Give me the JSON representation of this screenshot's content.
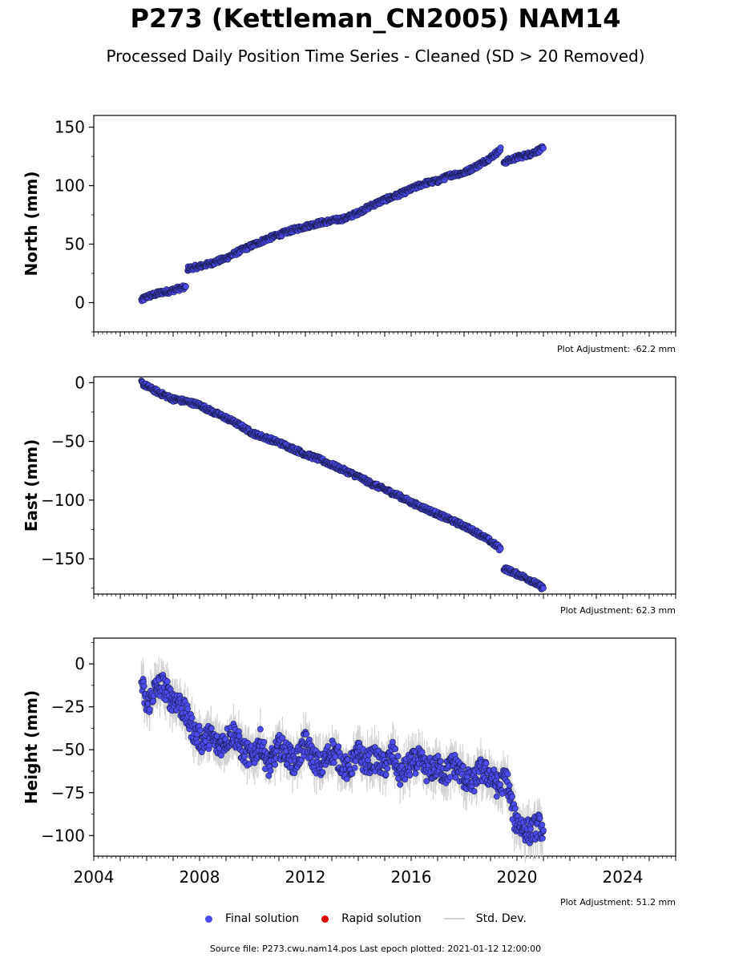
{
  "title": "P273 (Kettleman_CN2005) NAM14",
  "subtitle": "Processed Daily Position Time Series - Cleaned (SD > 20 Removed)",
  "colors": {
    "final": "#4b4bf0",
    "final_edge": "#1a1a4a",
    "rapid": "#e00000",
    "stddev": "#d2d2d2"
  },
  "legend": {
    "final": "Final solution",
    "rapid": "Rapid solution",
    "stddev": "Std. Dev."
  },
  "footer": "Source file: P273.cwu.nam14.pos  Last epoch plotted: 2021-01-12 12:00:00",
  "chart_data": [
    {
      "type": "scatter",
      "ylabel": "North (mm)",
      "xlim": [
        2004,
        2026
      ],
      "ylim": [
        -25,
        160
      ],
      "yticks": [
        0,
        50,
        100,
        150
      ],
      "adjustment": "Plot Adjustment: -62.2 mm",
      "series": [
        {
          "x": [
            2005.8,
            2006.0,
            2006.3,
            2006.6,
            2006.9,
            2007.2,
            2007.5,
            2007.55,
            2008.0,
            2008.5,
            2009.0,
            2009.5,
            2010.0,
            2010.5,
            2011.0,
            2011.5,
            2012.0,
            2012.5,
            2013.0,
            2013.5,
            2014.0,
            2014.5,
            2015.0,
            2015.5,
            2016.0,
            2016.5,
            2017.0,
            2017.5,
            2018.0,
            2018.5,
            2019.0,
            2019.4,
            2019.5,
            2020.0,
            2020.5,
            2021.0
          ],
          "y": [
            2,
            5,
            7,
            9,
            10,
            12,
            13,
            29,
            31,
            34,
            38,
            44,
            49,
            54,
            58,
            62,
            65,
            68,
            70,
            72,
            77,
            83,
            88,
            92,
            97,
            102,
            104,
            109,
            111,
            117,
            124,
            131,
            120,
            124,
            127,
            132
          ]
        }
      ]
    },
    {
      "type": "scatter",
      "ylabel": "East (mm)",
      "xlim": [
        2004,
        2026
      ],
      "ylim": [
        -180,
        5
      ],
      "yticks": [
        0,
        -50,
        -100,
        -150
      ],
      "adjustment": "Plot Adjustment: 62.3 mm",
      "series": [
        {
          "x": [
            2005.8,
            2006.0,
            2006.5,
            2007.0,
            2007.5,
            2008.0,
            2008.5,
            2009.0,
            2009.5,
            2010.0,
            2010.5,
            2011.0,
            2011.5,
            2012.0,
            2012.5,
            2013.0,
            2013.5,
            2014.0,
            2014.5,
            2015.0,
            2015.5,
            2016.0,
            2016.5,
            2017.0,
            2017.5,
            2018.0,
            2018.5,
            2019.0,
            2019.4,
            2019.5,
            2020.0,
            2020.5,
            2021.0
          ],
          "y": [
            0,
            -3,
            -9,
            -14,
            -16,
            -19,
            -25,
            -30,
            -36,
            -43,
            -47,
            -51,
            -56,
            -61,
            -65,
            -70,
            -75,
            -80,
            -86,
            -91,
            -96,
            -102,
            -107,
            -112,
            -117,
            -122,
            -128,
            -135,
            -142,
            -158,
            -163,
            -168,
            -175
          ]
        }
      ]
    },
    {
      "type": "scatter",
      "ylabel": "Height (mm)",
      "xlim": [
        2004,
        2026
      ],
      "ylim": [
        -112,
        15
      ],
      "yticks": [
        0,
        -25,
        -50,
        -75,
        -100
      ],
      "xticks": [
        2004,
        2008,
        2012,
        2016,
        2020,
        2024
      ],
      "adjustment": "Plot Adjustment: 51.2 mm",
      "series": [
        {
          "x": [
            2005.8,
            2006.0,
            2006.3,
            2006.6,
            2006.9,
            2007.2,
            2007.5,
            2007.8,
            2008.1,
            2008.4,
            2008.7,
            2009.0,
            2009.3,
            2009.6,
            2010.0,
            2010.3,
            2010.6,
            2011.0,
            2011.3,
            2011.6,
            2012.0,
            2012.3,
            2012.6,
            2013.0,
            2013.3,
            2013.6,
            2014.0,
            2014.3,
            2014.6,
            2015.0,
            2015.3,
            2015.6,
            2016.0,
            2016.3,
            2016.6,
            2017.0,
            2017.3,
            2017.6,
            2018.0,
            2018.3,
            2018.6,
            2019.0,
            2019.3,
            2019.6,
            2019.9,
            2020.2,
            2020.5,
            2020.8,
            2021.0
          ],
          "y": [
            -10,
            -25,
            -15,
            -12,
            -20,
            -22,
            -30,
            -40,
            -45,
            -42,
            -48,
            -44,
            -40,
            -50,
            -55,
            -45,
            -60,
            -48,
            -52,
            -58,
            -46,
            -55,
            -60,
            -50,
            -56,
            -62,
            -52,
            -58,
            -55,
            -60,
            -52,
            -65,
            -58,
            -56,
            -62,
            -60,
            -64,
            -58,
            -66,
            -70,
            -62,
            -65,
            -72,
            -66,
            -90,
            -95,
            -98,
            -94,
            -97
          ]
        }
      ]
    }
  ]
}
